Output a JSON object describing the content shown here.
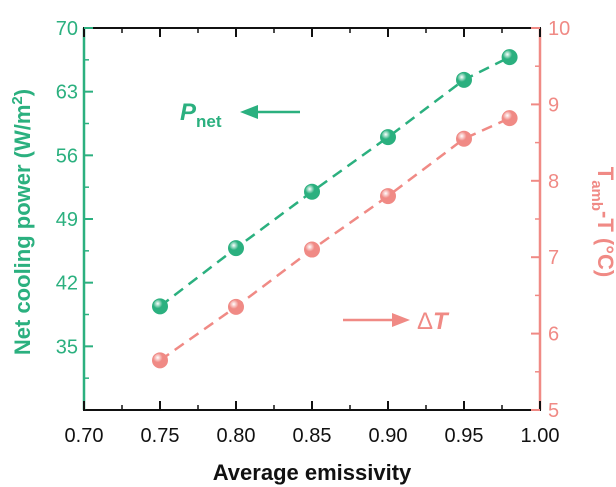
{
  "chart_data": {
    "type": "scatter",
    "x_label": "Average emissivity",
    "x_ticks": [
      "0.70",
      "0.75",
      "0.80",
      "0.85",
      "0.90",
      "0.95",
      "1.00"
    ],
    "x_range": [
      0.7,
      1.0
    ],
    "left_axis": {
      "label": "Net cooling power (W/m",
      "label_sup": "2",
      "label_close": ")",
      "ticks": [
        "35",
        "42",
        "49",
        "56",
        "63",
        "70"
      ],
      "range": [
        28,
        70
      ],
      "color": "#2bb07f"
    },
    "right_axis": {
      "label_t": "T",
      "label_sub": "amb",
      "label_rest": "-T (°C)",
      "ticks": [
        "5",
        "6",
        "7",
        "8",
        "9",
        "10"
      ],
      "range": [
        5,
        10
      ],
      "color": "#f08a85"
    },
    "series": [
      {
        "name": "P_net",
        "axis": "left",
        "color": "#2bb07f",
        "x": [
          0.75,
          0.8,
          0.85,
          0.9,
          0.95,
          0.98
        ],
        "y": [
          39.4,
          45.8,
          52.0,
          58.0,
          64.3,
          66.8
        ]
      },
      {
        "name": "ΔT",
        "axis": "right",
        "color": "#f08a85",
        "x": [
          0.75,
          0.8,
          0.85,
          0.9,
          0.95,
          0.98
        ],
        "y": [
          5.65,
          6.35,
          7.1,
          7.8,
          8.55,
          8.82
        ]
      }
    ],
    "annotations": {
      "left_symbol": "P",
      "left_sub": "net",
      "right_delta": "Δ",
      "right_symbol": "T"
    }
  }
}
